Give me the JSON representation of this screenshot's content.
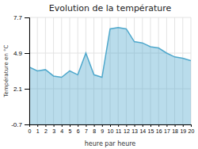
{
  "chart_data": {
    "type": "area",
    "title": "Evolution de la température",
    "xlabel": "heure par heure",
    "ylabel": "Température en °C",
    "x": [
      0,
      1,
      2,
      3,
      4,
      5,
      6,
      7,
      8,
      9,
      10,
      11,
      12,
      13,
      14,
      15,
      16,
      17,
      18,
      19,
      20
    ],
    "values": [
      3.8,
      3.5,
      3.6,
      3.1,
      3.0,
      3.5,
      3.2,
      4.9,
      3.2,
      3.0,
      6.8,
      6.9,
      6.8,
      5.8,
      5.7,
      5.4,
      5.3,
      4.9,
      4.6,
      4.5,
      4.3
    ],
    "color": "#4fa8cc",
    "xlim": [
      0,
      20
    ],
    "ylim": [
      -0.7,
      7.7
    ],
    "xticks": [
      0,
      1,
      2,
      3,
      4,
      5,
      6,
      7,
      8,
      9,
      10,
      11,
      12,
      13,
      14,
      15,
      16,
      17,
      18,
      19,
      20
    ],
    "yticks": [
      -0.7,
      2.1,
      4.9,
      7.7
    ],
    "grid": true
  }
}
